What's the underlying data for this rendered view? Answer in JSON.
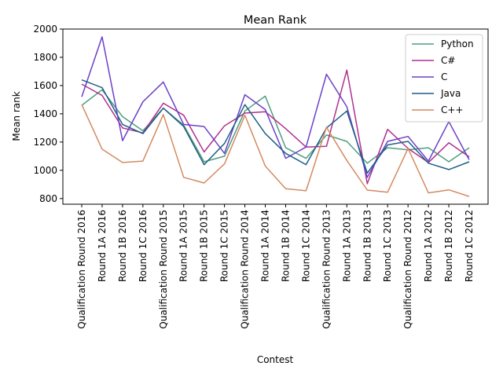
{
  "chart_data": {
    "type": "line",
    "title": "Mean Rank",
    "xlabel": "Contest",
    "ylabel": "Mean rank",
    "ylim": [
      760,
      2000
    ],
    "yticks": [
      800,
      1000,
      1200,
      1400,
      1600,
      1800,
      2000
    ],
    "grid": false,
    "legend_position": "top-right",
    "categories": [
      "Qualification Round 2016",
      "Round 1A 2016",
      "Round 1B 2016",
      "Round 1C 2016",
      "Qualification Round 2015",
      "Round 1A 2015",
      "Round 1B 2015",
      "Round 1C 2015",
      "Qualification Round 2014",
      "Round 1A 2014",
      "Round 1B 2014",
      "Round 1C 2014",
      "Qualification Round 2013",
      "Round 1A 2013",
      "Round 1B 2013",
      "Round 1C 2013",
      "Qualification Round 2012",
      "Round 1A 2012",
      "Round 1B 2012",
      "Round 1C 2012"
    ],
    "series": [
      {
        "name": "Python",
        "color": "#4e9f80",
        "values": [
          1460,
          1570,
          1380,
          1280,
          1440,
          1320,
          1060,
          1100,
          1420,
          1525,
          1160,
          1085,
          1250,
          1205,
          1050,
          1160,
          1145,
          1160,
          1060,
          1160
        ]
      },
      {
        "name": "C#",
        "color": "#b0318f",
        "values": [
          1610,
          1530,
          1300,
          1265,
          1475,
          1390,
          1130,
          1315,
          1405,
          1415,
          1295,
          1165,
          1170,
          1710,
          905,
          1290,
          1155,
          1055,
          1195,
          1095
        ]
      },
      {
        "name": "C",
        "color": "#6a41c8",
        "values": [
          1520,
          1945,
          1210,
          1485,
          1625,
          1325,
          1310,
          1120,
          1535,
          1430,
          1085,
          1165,
          1680,
          1450,
          950,
          1205,
          1240,
          1065,
          1345,
          1075
        ]
      },
      {
        "name": "Java",
        "color": "#1f5f86",
        "values": [
          1640,
          1585,
          1325,
          1260,
          1440,
          1310,
          1040,
          1190,
          1465,
          1260,
          1120,
          1040,
          1300,
          1420,
          980,
          1180,
          1205,
          1050,
          1005,
          1060
        ]
      },
      {
        "name": "C++",
        "color": "#d48a60",
        "values": [
          1465,
          1150,
          1055,
          1065,
          1395,
          950,
          910,
          1045,
          1390,
          1030,
          870,
          855,
          1305,
          1070,
          860,
          845,
          1155,
          840,
          862,
          815
        ]
      }
    ]
  }
}
